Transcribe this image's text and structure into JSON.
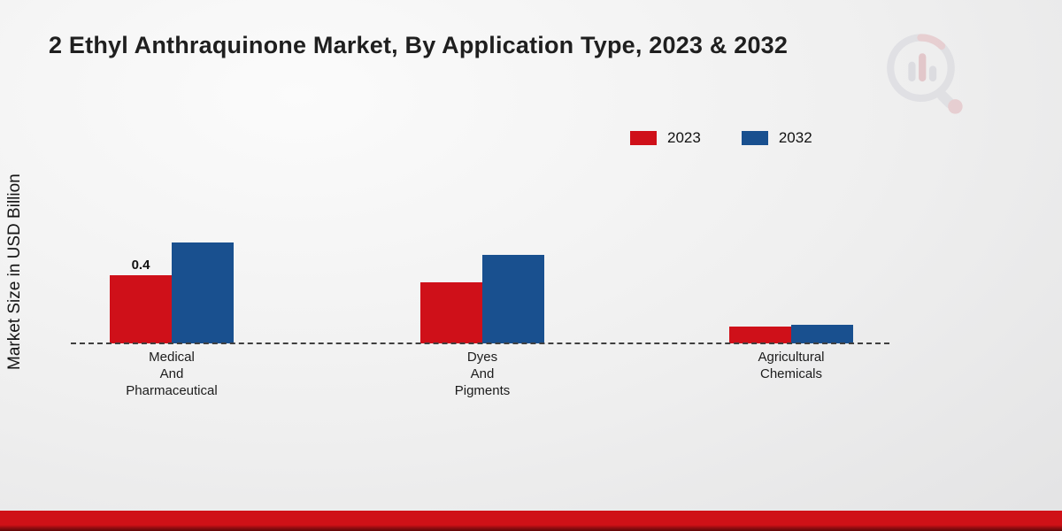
{
  "chart_data": {
    "type": "bar",
    "title": "2 Ethyl Anthraquinone Market, By Application Type, 2023 & 2032",
    "ylabel": "Market Size in USD Billion",
    "categories": [
      "Medical\nAnd\nPharmaceutical",
      "Dyes\nAnd\nPigments",
      "Agricultural\nChemicals"
    ],
    "series": [
      {
        "name": "2023",
        "color": "#cf1019",
        "values": [
          0.4,
          0.36,
          0.1
        ]
      },
      {
        "name": "2032",
        "color": "#19508f",
        "values": [
          0.59,
          0.52,
          0.11
        ]
      }
    ],
    "annotations": [
      {
        "series": 0,
        "category": 0,
        "text": "0.4"
      }
    ],
    "ylim": [
      0,
      0.7
    ],
    "grid": false,
    "legend_position": "top-right",
    "baseline": "dashed"
  },
  "icons": {
    "watermark": "magnifier-bar-chart-logo"
  }
}
